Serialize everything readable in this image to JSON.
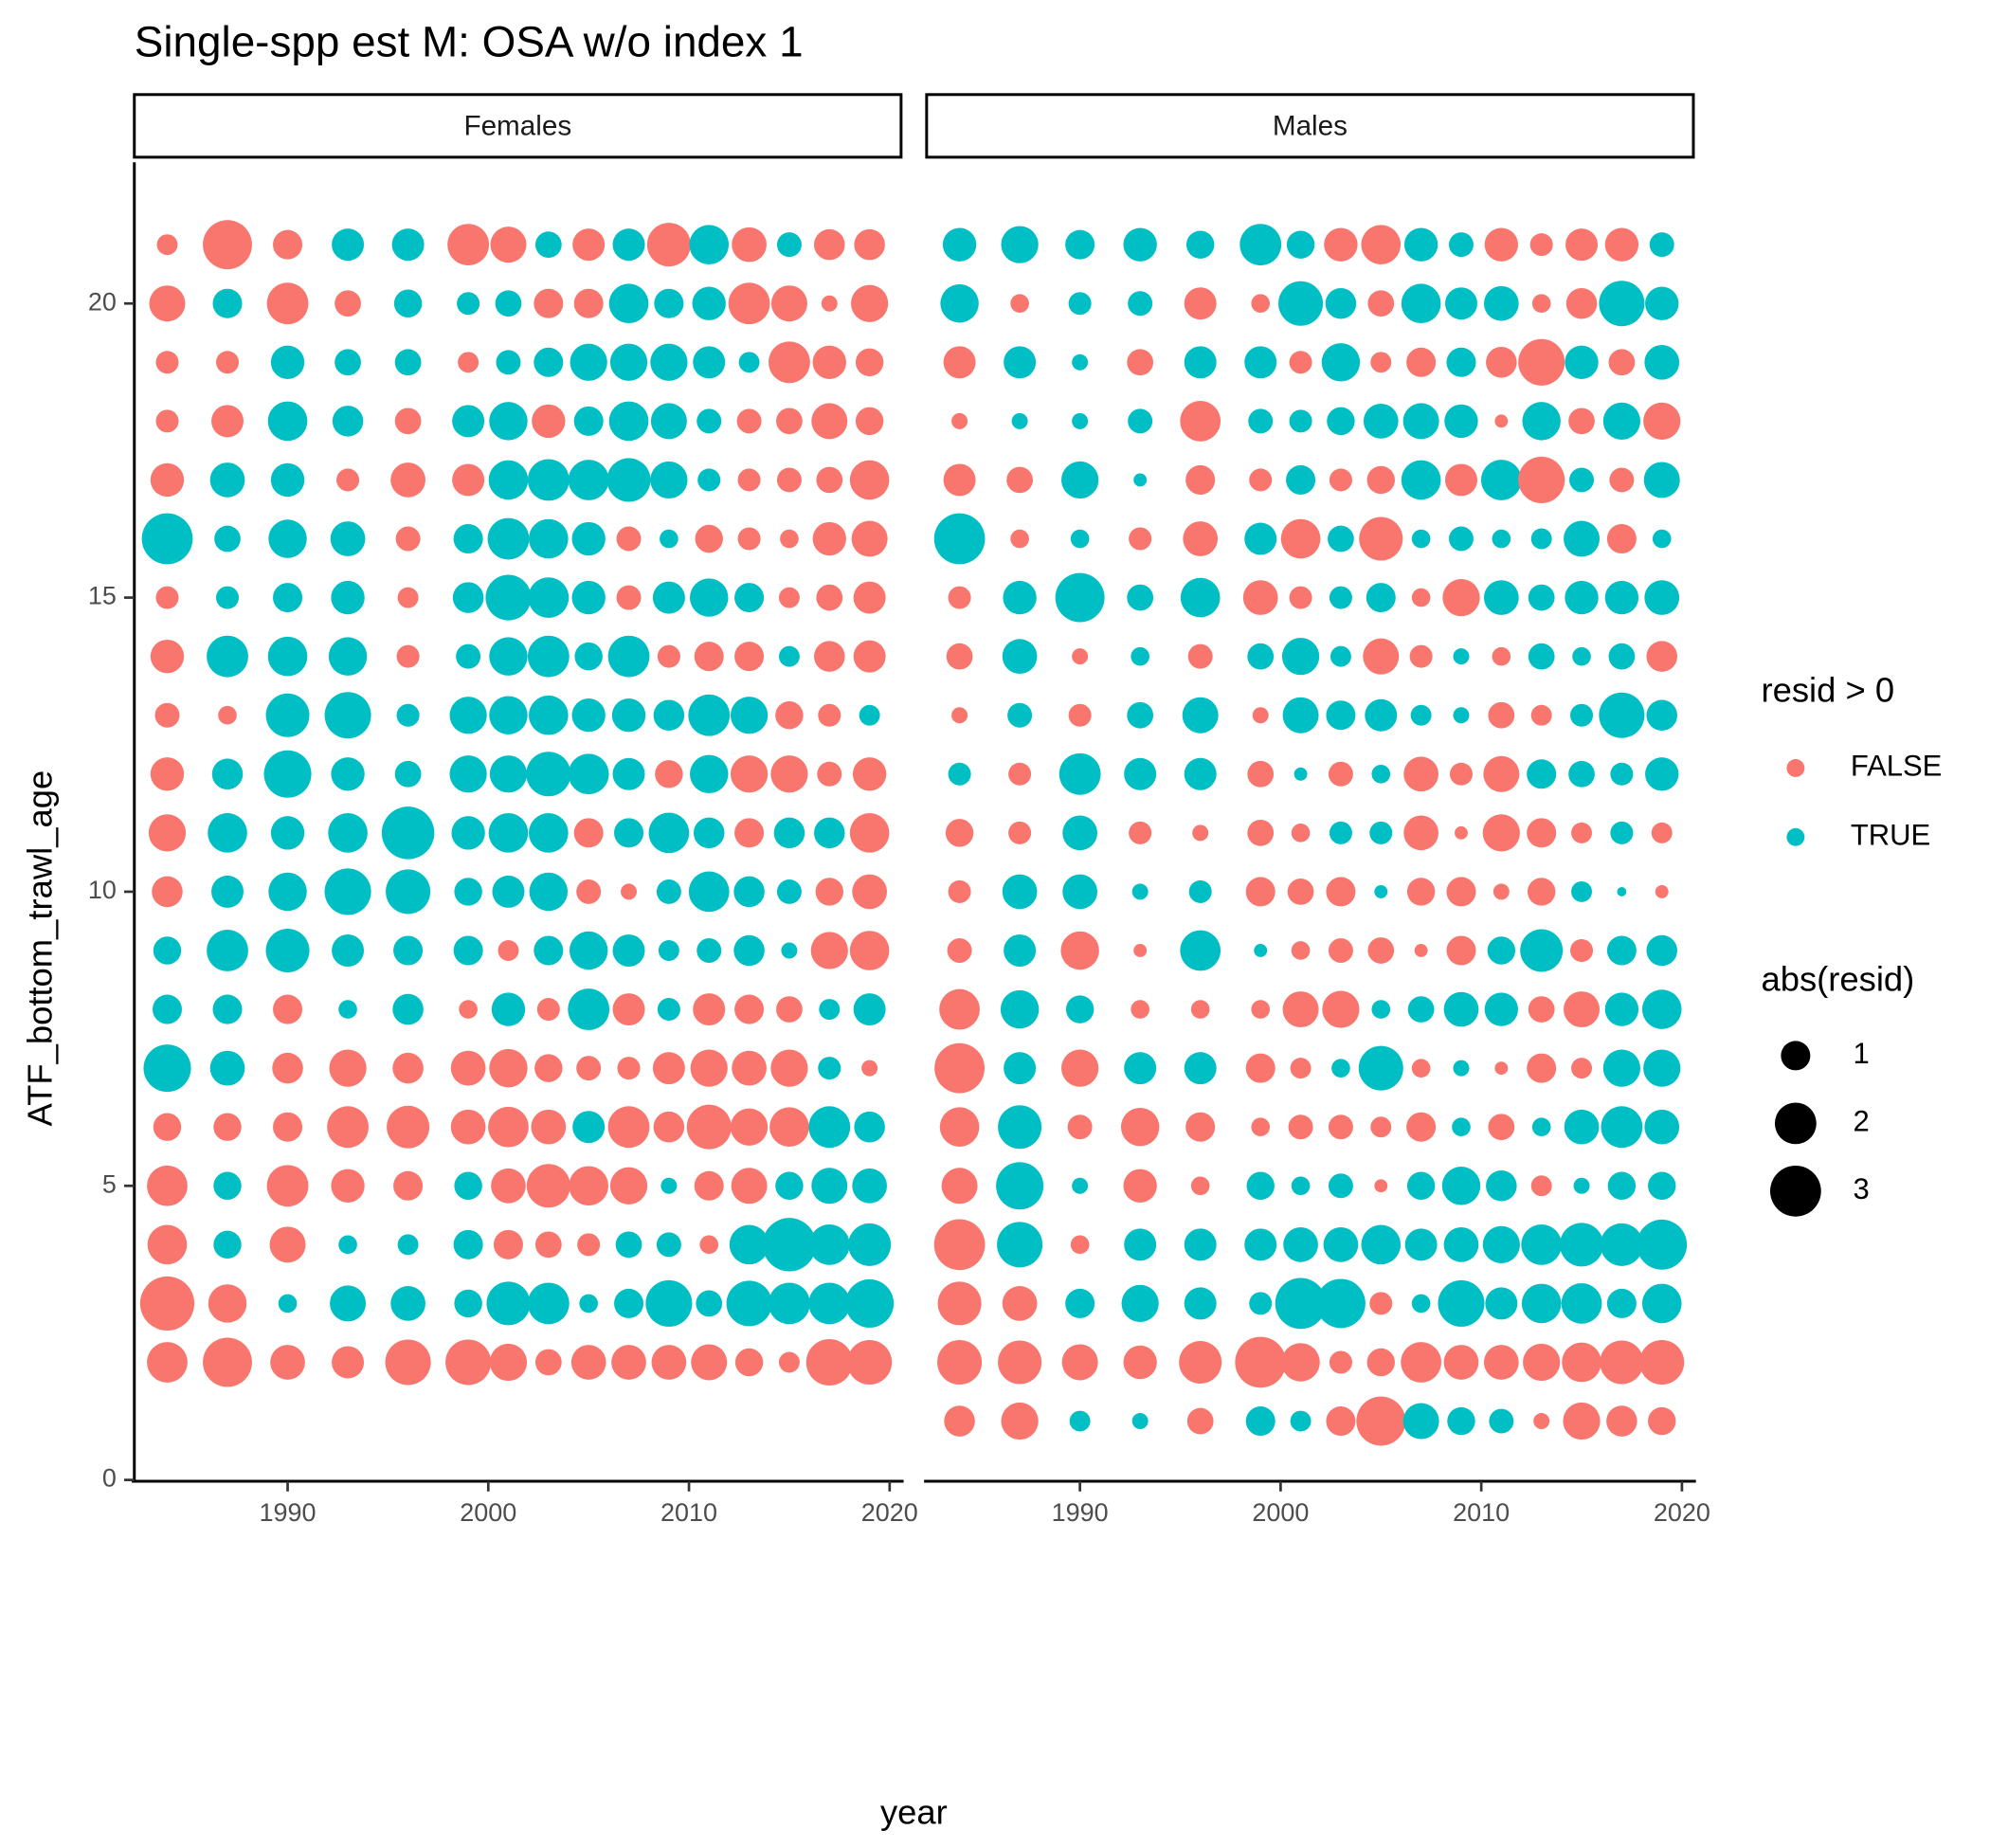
{
  "chart_data": {
    "type": "bubble",
    "title": "Single-spp est M: OSA w/o index 1",
    "xlabel": "year",
    "ylabel": "ATF_bottom_trawl_age",
    "years": [
      1984,
      1987,
      1990,
      1993,
      1996,
      1999,
      2001,
      2003,
      2005,
      2007,
      2009,
      2011,
      2013,
      2015,
      2017,
      2019
    ],
    "xlim": [
      1982.36,
      2020.57
    ],
    "xticks": [
      1990,
      2000,
      2010,
      2020
    ],
    "ylim": [
      0,
      22.4
    ],
    "yticks": [
      0,
      5,
      10,
      15,
      20
    ],
    "color_legend_title": "resid > 0",
    "color_legend": [
      {
        "label": "FALSE",
        "color": "#f8766d"
      },
      {
        "label": "TRUE",
        "color": "#00bfc4"
      }
    ],
    "size_legend_title": "abs(resid)",
    "size_breaks": [
      1,
      2,
      3
    ],
    "panels": [
      {
        "name": "Females",
        "ages": [
          21,
          20,
          19,
          18,
          17,
          16,
          15,
          14,
          13,
          12,
          11,
          10,
          9,
          8,
          7,
          6,
          5,
          4,
          3,
          2
        ],
        "resid": [
          [
            -0.5,
            -2.8,
            -1,
            1.2,
            1.2,
            -2,
            -1.5,
            0.8,
            -1.2,
            1.2,
            -2.2,
            1.8,
            -1.4,
            0.7,
            -1.1,
            -1.1
          ],
          [
            -1.5,
            1,
            -2,
            -0.8,
            0.9,
            0.6,
            0.8,
            -1,
            -1,
            1.8,
            1,
            1.3,
            -2,
            -1.5,
            -0.3,
            -1.6
          ],
          [
            -0.6,
            -0.6,
            1.3,
            0.8,
            0.8,
            -0.5,
            0.7,
            1,
            1.6,
            1.6,
            1.6,
            1.2,
            0.5,
            -2,
            -1.3,
            -0.9
          ],
          [
            -0.6,
            -1.2,
            1.8,
            1.1,
            -0.8,
            1.2,
            1.7,
            -1.3,
            1,
            1.8,
            1.5,
            0.7,
            -0.7,
            -0.8,
            -1.5,
            -0.9
          ],
          [
            -1.3,
            1.4,
            1.3,
            -0.6,
            -1.4,
            -1.2,
            1.8,
            2,
            1.9,
            2.2,
            1.6,
            0.6,
            -0.6,
            -0.7,
            -0.8,
            -1.8
          ],
          [
            3,
            0.8,
            1.7,
            1.4,
            -0.7,
            1,
            2,
            1.8,
            1.3,
            -0.7,
            0.4,
            -0.9,
            -0.6,
            -0.4,
            -1.3,
            -1.5
          ],
          [
            -0.6,
            0.6,
            1,
            1.3,
            -0.5,
            1.1,
            2.4,
            1.9,
            1.3,
            -0.7,
            1.2,
            1.7,
            1,
            -0.5,
            -0.8,
            -1.2
          ],
          [
            -1.3,
            2,
            1.8,
            1.7,
            -0.6,
            0.7,
            1.7,
            2,
            0.9,
            2,
            -0.6,
            -1,
            -1,
            0.5,
            -1.1,
            -1.2
          ],
          [
            -0.7,
            -0.4,
            2.2,
            2.5,
            0.6,
            1.6,
            1.7,
            1.8,
            1.3,
            1.3,
            1.1,
            2,
            1.6,
            -0.9,
            -0.6,
            0.5
          ],
          [
            -1.3,
            1.1,
            2.6,
            1.3,
            0.8,
            1.6,
            1.6,
            2.3,
            1.9,
            1.2,
            -0.9,
            1.7,
            -1.6,
            -1.6,
            -0.7,
            -1.3
          ],
          [
            -1.6,
            1.8,
            1.3,
            1.8,
            3.2,
            1.3,
            1.8,
            1.8,
            -1,
            1,
            1.9,
            1.1,
            -1,
            1.1,
            1.1,
            -1.8
          ],
          [
            -1.1,
            1.2,
            1.7,
            2.5,
            2.3,
            0.9,
            1.2,
            1.7,
            -0.7,
            -0.3,
            0.7,
            1.9,
            1.1,
            0.7,
            -0.9,
            -1.4
          ],
          [
            0.9,
            2,
            2.2,
            1.2,
            1,
            1,
            -0.5,
            1,
            1.7,
            1.2,
            0.5,
            0.7,
            1.1,
            0.3,
            -1.6,
            -1.8
          ],
          [
            1,
            1,
            -1,
            0.4,
            1.1,
            -0.4,
            1.3,
            -0.6,
            2,
            -1.2,
            0.6,
            -1.2,
            -1,
            -0.8,
            0.5,
            1.2
          ],
          [
            2.6,
            1.4,
            -1.1,
            -1.6,
            -1.1,
            -1.4,
            -1.7,
            -0.9,
            -0.7,
            -0.6,
            -1.2,
            -1.6,
            -1.4,
            -1.6,
            0.6,
            -0.3
          ],
          [
            -0.9,
            -0.9,
            -1,
            -2,
            -2.1,
            -1.4,
            -1.9,
            -1.4,
            1.2,
            -2,
            -1.1,
            -2.3,
            -1.6,
            -1.8,
            2,
            1.1
          ],
          [
            -1.9,
            0.9,
            -2,
            -1.3,
            -1,
            0.9,
            -1.4,
            -2.2,
            -1.8,
            -1.6,
            0.3,
            -1,
            -1.5,
            0.9,
            1.5,
            1.4
          ],
          [
            -1.8,
            0.9,
            -1.5,
            0.4,
            0.5,
            1,
            -1,
            -0.8,
            -0.6,
            0.8,
            0.7,
            -0.4,
            1.8,
            3.3,
            1.9,
            2.1
          ],
          [
            -3.4,
            -1.7,
            0.4,
            1.5,
            1.4,
            0.9,
            2.2,
            2,
            0.4,
            1,
            2.5,
            0.8,
            2.4,
            2,
            2,
            2.7
          ],
          [
            -1.9,
            -2.8,
            -1.4,
            -1.2,
            -2.4,
            -2.4,
            -1.6,
            -0.8,
            -1.4,
            -1.4,
            -1.4,
            -1.5,
            -0.9,
            -0.5,
            -2.5,
            -2.3
          ]
        ]
      },
      {
        "name": "Males",
        "ages": [
          21,
          20,
          19,
          18,
          17,
          16,
          15,
          14,
          13,
          12,
          11,
          10,
          9,
          8,
          7,
          6,
          5,
          4,
          3,
          2,
          1
        ],
        "resid": [
          [
            1.3,
            1.6,
            1,
            1.3,
            0.9,
            2,
            0.9,
            -1.3,
            -1.8,
            1.3,
            0.7,
            -1.3,
            -0.6,
            -1.2,
            -1.3,
            0.7
          ],
          [
            1.7,
            -0.4,
            0.6,
            0.7,
            -1.2,
            -0.4,
            2.3,
            1.1,
            -0.8,
            1.8,
            1.2,
            1.4,
            -0.4,
            -1.1,
            2.4,
            1.3
          ],
          [
            -1.2,
            1.2,
            0.3,
            -0.8,
            1.2,
            1.2,
            -0.6,
            1.7,
            -0.5,
            -1,
            1,
            -1.1,
            -2.5,
            1.3,
            -0.8,
            1.4
          ],
          [
            -0.3,
            0.3,
            0.3,
            0.7,
            -1.9,
            0.7,
            0.6,
            0.9,
            1.4,
            1.5,
            1.3,
            -0.2,
            1.7,
            -0.8,
            1.6,
            -1.6
          ],
          [
            -1.2,
            -0.8,
            1.6,
            0.2,
            -1,
            -0.6,
            1,
            -0.6,
            -0.9,
            1.8,
            -1.2,
            1.9,
            -2.5,
            0.7,
            -0.7,
            1.5
          ],
          [
            3,
            -0.4,
            0.4,
            -0.6,
            -1.4,
            1.2,
            -1.8,
            0.8,
            -2.2,
            0.4,
            0.7,
            0.4,
            0.5,
            1.5,
            -1,
            0.4
          ],
          [
            -0.6,
            1.3,
            2.8,
            0.8,
            1.8,
            -1.4,
            -0.6,
            0.6,
            1,
            -0.4,
            -1.6,
            1.4,
            0.8,
            1.3,
            1.3,
            1.4
          ],
          [
            -0.8,
            1.4,
            -0.3,
            0.4,
            -0.7,
            0.8,
            1.6,
            0.5,
            -1.5,
            -0.6,
            0.3,
            -0.4,
            0.8,
            0.4,
            0.8,
            -1.1
          ],
          [
            -0.3,
            0.7,
            -0.6,
            0.8,
            1.5,
            -0.3,
            1.5,
            1,
            1.2,
            0.5,
            0.3,
            -0.8,
            -0.5,
            0.6,
            2.4,
            1.1
          ],
          [
            0.6,
            -0.6,
            2,
            1.2,
            1.2,
            -0.8,
            0.2,
            -0.7,
            0.4,
            -1.4,
            -0.6,
            -1.5,
            1,
            0.8,
            0.6,
            1.3
          ],
          [
            -0.9,
            -0.6,
            1.4,
            -0.6,
            -0.3,
            -0.8,
            -0.4,
            0.6,
            0.6,
            -1.4,
            -0.2,
            -1.6,
            -1,
            -0.5,
            0.6,
            -0.5
          ],
          [
            -0.6,
            1.4,
            1.4,
            0.3,
            0.6,
            -1,
            -0.8,
            -1,
            0.2,
            -0.9,
            -1,
            -0.3,
            -0.9,
            0.5,
            0.1,
            -0.2
          ],
          [
            -0.7,
            1.2,
            -1.7,
            -0.2,
            1.9,
            0.2,
            -0.4,
            -0.7,
            -0.8,
            -0.2,
            -1,
            0.9,
            2.1,
            -0.6,
            1,
            1.1
          ],
          [
            -1.9,
            1.7,
            0.9,
            -0.4,
            -0.4,
            -0.4,
            -1.5,
            -1.6,
            0.4,
            0.8,
            1.4,
            1.3,
            -0.8,
            -1.5,
            1.3,
            1.8
          ],
          [
            -2.9,
            1.2,
            -1.6,
            1.2,
            1.2,
            -1,
            -0.5,
            0.4,
            2.3,
            -0.4,
            0.3,
            -0.2,
            -1,
            -0.5,
            1.6,
            1.6
          ],
          [
            -1.8,
            2.2,
            -0.7,
            -1.7,
            -1,
            -0.4,
            -0.7,
            -0.7,
            -0.5,
            -1,
            0.4,
            -0.8,
            0.4,
            1.4,
            2,
            1.4
          ],
          [
            -1.5,
            2.6,
            0.3,
            -1.3,
            -0.4,
            0.9,
            0.4,
            0.7,
            -0.2,
            0.9,
            1.7,
            1.1,
            -0.5,
            0.3,
            0.9,
            0.9
          ],
          [
            -3,
            2.4,
            -0.4,
            1.2,
            1.2,
            1.2,
            1.4,
            1.4,
            1.8,
            1.2,
            1.4,
            1.6,
            1.9,
            2.2,
            2.1,
            2.9
          ],
          [
            -2.2,
            -1.4,
            1,
            1.6,
            1.2,
            0.6,
            3,
            2.8,
            -0.6,
            0.4,
            2.5,
            1.2,
            1.8,
            1.9,
            1,
            1.8
          ],
          [
            -2.3,
            -2.2,
            -1.5,
            -1.3,
            -2.1,
            -3,
            -1.7,
            -0.6,
            -0.9,
            -1.9,
            -1.4,
            -1.4,
            -1.6,
            -1.8,
            -2.2,
            -2.3
          ],
          [
            -1.1,
            -1.6,
            0.5,
            0.3,
            -0.8,
            1,
            0.5,
            -1,
            -2.8,
            1.5,
            0.9,
            0.7,
            -0.3,
            -1.6,
            -1.1,
            -0.9
          ]
        ]
      }
    ]
  }
}
